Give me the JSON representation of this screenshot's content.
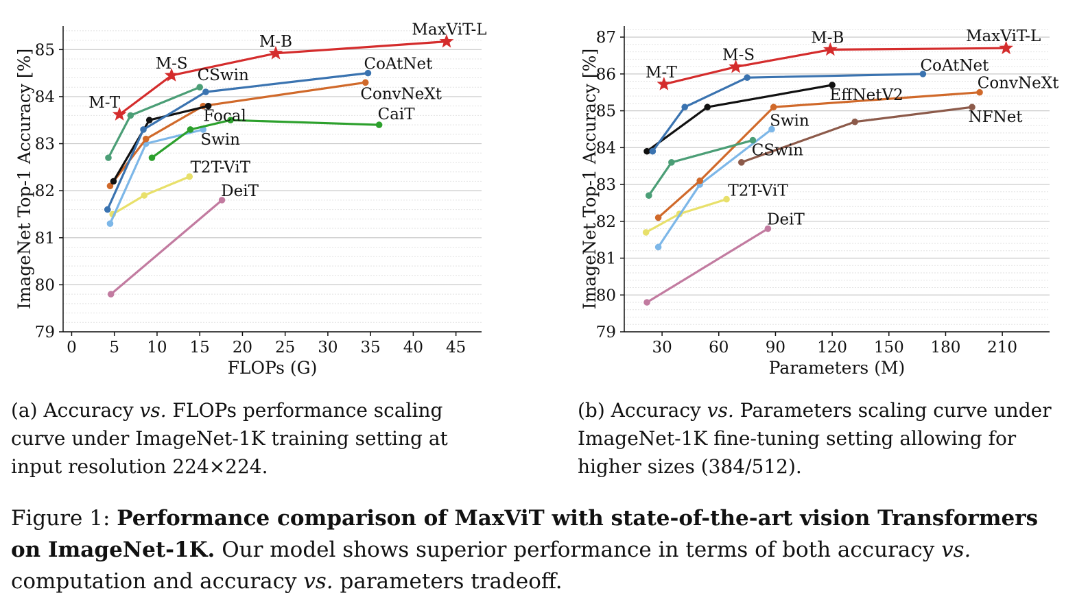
{
  "chart_data": [
    {
      "type": "line",
      "xlabel": "FLOPs (G)",
      "ylabel": "ImageNet Top-1 Accuracy [%]",
      "xlim": [
        -1,
        48
      ],
      "ylim": [
        79,
        85.5
      ],
      "xticks": [
        0,
        5,
        10,
        15,
        20,
        25,
        30,
        35,
        40,
        45
      ],
      "yticks": [
        79,
        80,
        81,
        82,
        83,
        84,
        85
      ],
      "grid": "horizontal",
      "series": [
        {
          "name": "DeiT",
          "color": "#c27ba0",
          "marker": "circle",
          "points": [
            [
              4.6,
              79.8
            ],
            [
              17.6,
              81.8
            ]
          ]
        },
        {
          "name": "T2T-ViT",
          "color": "#e8e06a",
          "marker": "circle",
          "points": [
            [
              4.8,
              81.5
            ],
            [
              8.5,
              81.9
            ],
            [
              13.8,
              82.3
            ]
          ]
        },
        {
          "name": "Swin",
          "color": "#7db7e8",
          "marker": "circle",
          "points": [
            [
              4.5,
              81.3
            ],
            [
              8.7,
              83.0
            ],
            [
              15.4,
              83.3
            ]
          ]
        },
        {
          "name": "CaiT",
          "color": "#2ca02c",
          "marker": "circle",
          "points": [
            [
              9.4,
              82.7
            ],
            [
              13.9,
              83.3
            ],
            [
              18.6,
              83.5
            ],
            [
              36.0,
              83.4
            ]
          ]
        },
        {
          "name": "ConvNeXt",
          "color": "#d0692a",
          "marker": "circle",
          "points": [
            [
              4.5,
              82.1
            ],
            [
              8.7,
              83.1
            ],
            [
              15.4,
              83.8
            ],
            [
              34.4,
              84.3
            ]
          ]
        },
        {
          "name": "Focal",
          "color": "#111111",
          "marker": "circle",
          "points": [
            [
              4.9,
              82.2
            ],
            [
              9.1,
              83.5
            ],
            [
              16.0,
              83.8
            ]
          ]
        },
        {
          "name": "CoAtNet",
          "color": "#3a73b0",
          "marker": "circle",
          "points": [
            [
              4.2,
              81.6
            ],
            [
              8.4,
              83.3
            ],
            [
              15.7,
              84.1
            ],
            [
              34.7,
              84.5
            ]
          ]
        },
        {
          "name": "CSwin",
          "color": "#4b9e76",
          "marker": "circle",
          "points": [
            [
              4.3,
              82.7
            ],
            [
              6.9,
              83.6
            ],
            [
              15.0,
              84.2
            ]
          ]
        },
        {
          "name": "MaxViT",
          "color": "#d42c2c",
          "marker": "star",
          "points": [
            [
              5.6,
              83.62
            ],
            [
              11.7,
              84.45
            ],
            [
              23.9,
              84.92
            ],
            [
              43.9,
              85.17
            ]
          ]
        }
      ],
      "annotations": [
        {
          "text": "M-T",
          "x": 5.6,
          "y": 83.62,
          "dx": -22,
          "dy": -10
        },
        {
          "text": "M-S",
          "x": 11.7,
          "y": 84.45,
          "dx": 0,
          "dy": -10
        },
        {
          "text": "M-B",
          "x": 23.9,
          "y": 84.92,
          "dx": 0,
          "dy": -10
        },
        {
          "text": "MaxViT-L",
          "x": 43.9,
          "y": 85.17,
          "dx": 4,
          "dy": -10
        },
        {
          "text": "CoAtNet",
          "x": 34.7,
          "y": 84.5,
          "dx": 44,
          "dy": -6
        },
        {
          "text": "CSwin",
          "x": 15.0,
          "y": 84.2,
          "dx": 34,
          "dy": -10
        },
        {
          "text": "ConvNeXt",
          "x": 34.4,
          "y": 84.3,
          "dx": 52,
          "dy": 24
        },
        {
          "text": "CaiT",
          "x": 36.0,
          "y": 83.4,
          "dx": 25,
          "dy": -8
        },
        {
          "text": "Focal",
          "x": 16.0,
          "y": 83.8,
          "dx": 24,
          "dy": 22
        },
        {
          "text": "Swin",
          "x": 15.4,
          "y": 83.3,
          "dx": 25,
          "dy": 22
        },
        {
          "text": "T2T-ViT",
          "x": 13.8,
          "y": 82.3,
          "dx": 45,
          "dy": -6
        },
        {
          "text": "DeiT",
          "x": 17.6,
          "y": 81.8,
          "dx": 26,
          "dy": -6
        }
      ]
    },
    {
      "type": "line",
      "xlabel": "Parameters (M)",
      "ylabel": "ImageNet Top-1 Accuracy [%]",
      "xlim": [
        10,
        235
      ],
      "ylim": [
        79,
        87.3
      ],
      "xticks": [
        30,
        60,
        90,
        120,
        150,
        180,
        210
      ],
      "yticks": [
        79,
        80,
        81,
        82,
        83,
        84,
        85,
        86,
        87
      ],
      "grid": "horizontal",
      "series": [
        {
          "name": "DeiT",
          "color": "#c27ba0",
          "marker": "circle",
          "points": [
            [
              22,
              79.8
            ],
            [
              86,
              81.8
            ]
          ]
        },
        {
          "name": "T2T-ViT",
          "color": "#e8e06a",
          "marker": "circle",
          "points": [
            [
              21.5,
              81.7
            ],
            [
              39.2,
              82.2
            ],
            [
              64.1,
              82.6
            ]
          ]
        },
        {
          "name": "Swin",
          "color": "#7db7e8",
          "marker": "circle",
          "points": [
            [
              28,
              81.3
            ],
            [
              50,
              83.0
            ],
            [
              88,
              84.5
            ]
          ]
        },
        {
          "name": "ConvNeXt",
          "color": "#d0692a",
          "marker": "circle",
          "points": [
            [
              28,
              82.1
            ],
            [
              50,
              83.1
            ],
            [
              89,
              85.1
            ],
            [
              198,
              85.5
            ]
          ]
        },
        {
          "name": "CSwin",
          "color": "#4b9e76",
          "marker": "circle",
          "points": [
            [
              23,
              82.7
            ],
            [
              35,
              83.6
            ],
            [
              78,
              84.2
            ]
          ]
        },
        {
          "name": "NFNet",
          "color": "#8c5a4a",
          "marker": "circle",
          "points": [
            [
              72,
              83.6
            ],
            [
              132,
              84.7
            ],
            [
              194,
              85.1
            ]
          ]
        },
        {
          "name": "EffNetV2",
          "color": "#111111",
          "marker": "circle",
          "points": [
            [
              22,
              83.9
            ],
            [
              54,
              85.1
            ],
            [
              120,
              85.7
            ]
          ]
        },
        {
          "name": "CoAtNet",
          "color": "#3a73b0",
          "marker": "circle",
          "points": [
            [
              25,
              83.9
            ],
            [
              42,
              85.1
            ],
            [
              75,
              85.9
            ],
            [
              168,
              86.0
            ]
          ]
        },
        {
          "name": "MaxViT",
          "color": "#d42c2c",
          "marker": "star",
          "points": [
            [
              31,
              85.72
            ],
            [
              69,
              86.19
            ],
            [
              119,
              86.66
            ],
            [
              212,
              86.7
            ]
          ]
        }
      ],
      "annotations": [
        {
          "text": "M-T",
          "x": 31,
          "y": 85.72,
          "dx": -4,
          "dy": -10
        },
        {
          "text": "M-S",
          "x": 69,
          "y": 86.19,
          "dx": 4,
          "dy": -10
        },
        {
          "text": "M-B",
          "x": 119,
          "y": 86.66,
          "dx": -4,
          "dy": -10
        },
        {
          "text": "MaxViT-L",
          "x": 212,
          "y": 86.7,
          "dx": -4,
          "dy": -10
        },
        {
          "text": "CoAtNet",
          "x": 168,
          "y": 86.0,
          "dx": 46,
          "dy": -5
        },
        {
          "text": "ConvNeXt",
          "x": 198,
          "y": 85.5,
          "dx": 56,
          "dy": -6
        },
        {
          "text": "EffNetV2",
          "x": 120,
          "y": 85.7,
          "dx": 50,
          "dy": 22
        },
        {
          "text": "NFNet",
          "x": 194,
          "y": 85.1,
          "dx": 34,
          "dy": 22
        },
        {
          "text": "Swin",
          "x": 88,
          "y": 84.5,
          "dx": 26,
          "dy": -5
        },
        {
          "text": "CSwin",
          "x": 78,
          "y": 84.2,
          "dx": 36,
          "dy": 22
        },
        {
          "text": "T2T-ViT",
          "x": 64.1,
          "y": 82.6,
          "dx": 46,
          "dy": -5
        },
        {
          "text": "DeiT",
          "x": 86,
          "y": 81.8,
          "dx": 26,
          "dy": -6
        }
      ]
    }
  ],
  "captions": {
    "a_label": "(a) Accuracy ",
    "a_vs": "vs.",
    "a_rest": " FLOPs performance scaling curve under ImageNet-1K training setting at input resolution 224×224.",
    "b_label": "(b) Accuracy ",
    "b_vs": "vs.",
    "b_rest": " Parameters scaling curve under ImageNet-1K fine-tuning setting allowing for higher sizes (384/512).",
    "figure_prefix": "Figure 1: ",
    "figure_bold": "Performance comparison of MaxViT with state-of-the-art vision Transformers on ImageNet-1K.",
    "figure_rest1": " Our model shows superior performance in terms of both accuracy ",
    "figure_vs1": "vs.",
    "figure_rest2": " computation and accuracy ",
    "figure_vs2": "vs.",
    "figure_rest3": " parameters tradeoff."
  }
}
